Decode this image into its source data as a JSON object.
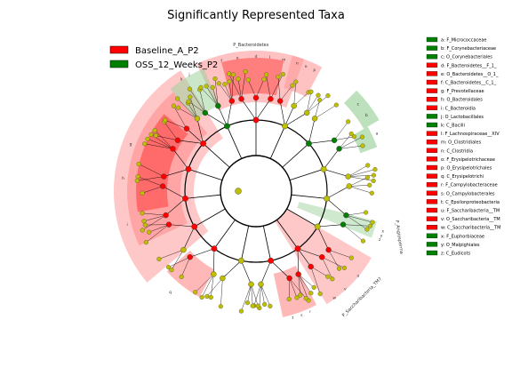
{
  "title": "Significantly Represented Taxa",
  "colors": {
    "baseline": "#ff0000",
    "oss": "#008000",
    "node_neutral": "#bfbf00",
    "baseline_shade": "#ff9a9a",
    "oss_shade": "#9fd49f"
  },
  "legend": [
    {
      "label": "Baseline_A_P2",
      "color": "#ff0000"
    },
    {
      "label": "OSS_12_Weeks_P2",
      "color": "#008000"
    }
  ],
  "key": [
    {
      "text": "a: F_Micrococcaceae",
      "group": "oss"
    },
    {
      "text": "b: F_Corynebacteriaceae",
      "group": "oss"
    },
    {
      "text": "c: O_Corynebacteriales",
      "group": "oss"
    },
    {
      "text": "d: F_Bacteroidetes__F_1_",
      "group": "baseline"
    },
    {
      "text": "e: O_Bacteroidetes__O_1_",
      "group": "baseline"
    },
    {
      "text": "f: C_Bacteroidetes__C_1_",
      "group": "baseline"
    },
    {
      "text": "g: F_Prevotellaceae",
      "group": "baseline"
    },
    {
      "text": "h: O_Bacteroidales",
      "group": "baseline"
    },
    {
      "text": "i: C_Bacteroidia",
      "group": "baseline"
    },
    {
      "text": "j: O_Lactobacillales",
      "group": "oss"
    },
    {
      "text": "k: C_Bacilli",
      "group": "oss"
    },
    {
      "text": "l: F_Lachnospiraceae__XIV",
      "group": "baseline"
    },
    {
      "text": "m: O_Clostridiales",
      "group": "baseline"
    },
    {
      "text": "n: C_Clostridia",
      "group": "baseline"
    },
    {
      "text": "o: F_Erysipelotrichaceae",
      "group": "baseline"
    },
    {
      "text": "p: O_Erysipelotrichales",
      "group": "baseline"
    },
    {
      "text": "q: C_Erysipelotrichi",
      "group": "baseline"
    },
    {
      "text": "r: F_Campylobacteraceae",
      "group": "baseline"
    },
    {
      "text": "s: O_Campylobacterales",
      "group": "baseline"
    },
    {
      "text": "t: C_Epsilonproteobacteria",
      "group": "baseline"
    },
    {
      "text": "u: F_Saccharibacteria__TM",
      "group": "baseline"
    },
    {
      "text": "v: O_Saccharibacteria__TM",
      "group": "baseline"
    },
    {
      "text": "w: C_Saccharibacteria__TM",
      "group": "baseline"
    },
    {
      "text": "x: F_Euphorbiaceae",
      "group": "oss"
    },
    {
      "text": "y: O_Malpighiales",
      "group": "oss"
    },
    {
      "text": "z: C_Eudicots",
      "group": "oss"
    }
  ],
  "clade_labels": {
    "bacteroidetes": "P_Bacteroidetes",
    "angiosperma": "P_Angiosperma",
    "saccharibacteria": "P_Saccharibacteria_TM7"
  },
  "sector_letters": [
    "a",
    "b",
    "c",
    "d",
    "e",
    "f",
    "g",
    "h",
    "i",
    "j",
    "k",
    "l",
    "m",
    "n",
    "o",
    "p",
    "q",
    "r",
    "s",
    "t",
    "u",
    "v",
    "w",
    "x",
    "y",
    "z"
  ]
}
